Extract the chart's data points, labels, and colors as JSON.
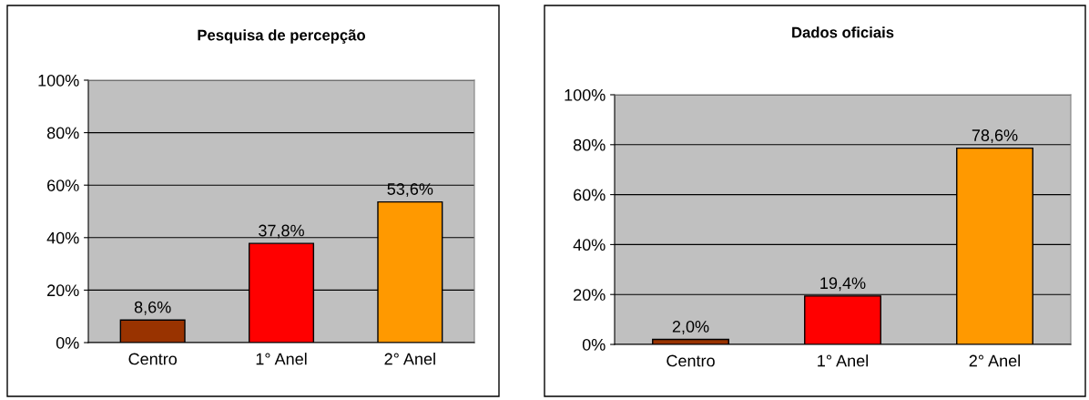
{
  "chart_data": [
    {
      "type": "bar",
      "title": "Pesquisa de percepção",
      "categories": [
        "Centro",
        "1° Anel",
        "2° Anel"
      ],
      "values": [
        8.6,
        37.8,
        53.6
      ],
      "colors": [
        "#993300",
        "#ff0000",
        "#ff9900"
      ],
      "value_labels": [
        "8,6%",
        "37,8%",
        "53,6%"
      ],
      "ylim": [
        0,
        100
      ],
      "yticks": [
        {
          "value": 0,
          "label": "0%"
        },
        {
          "value": 20,
          "label": "20%"
        },
        {
          "value": 40,
          "label": "40%"
        },
        {
          "value": 60,
          "label": "60%"
        },
        {
          "value": 80,
          "label": "80%"
        },
        {
          "value": 100,
          "label": "100%"
        }
      ],
      "grid": "y",
      "legend": false
    },
    {
      "type": "bar",
      "title": "Dados oficiais",
      "categories": [
        "Centro",
        "1° Anel",
        "2° Anel"
      ],
      "values": [
        2.0,
        19.4,
        78.6
      ],
      "colors": [
        "#993300",
        "#ff0000",
        "#ff9900"
      ],
      "value_labels": [
        "2,0%",
        "19,4%",
        "78,6%"
      ],
      "ylim": [
        0,
        100
      ],
      "yticks": [
        {
          "value": 0,
          "label": "0%"
        },
        {
          "value": 20,
          "label": "20%"
        },
        {
          "value": 40,
          "label": "40%"
        },
        {
          "value": 60,
          "label": "60%"
        },
        {
          "value": 80,
          "label": "80%"
        },
        {
          "value": 100,
          "label": "100%"
        }
      ],
      "grid": "y",
      "legend": false
    }
  ]
}
